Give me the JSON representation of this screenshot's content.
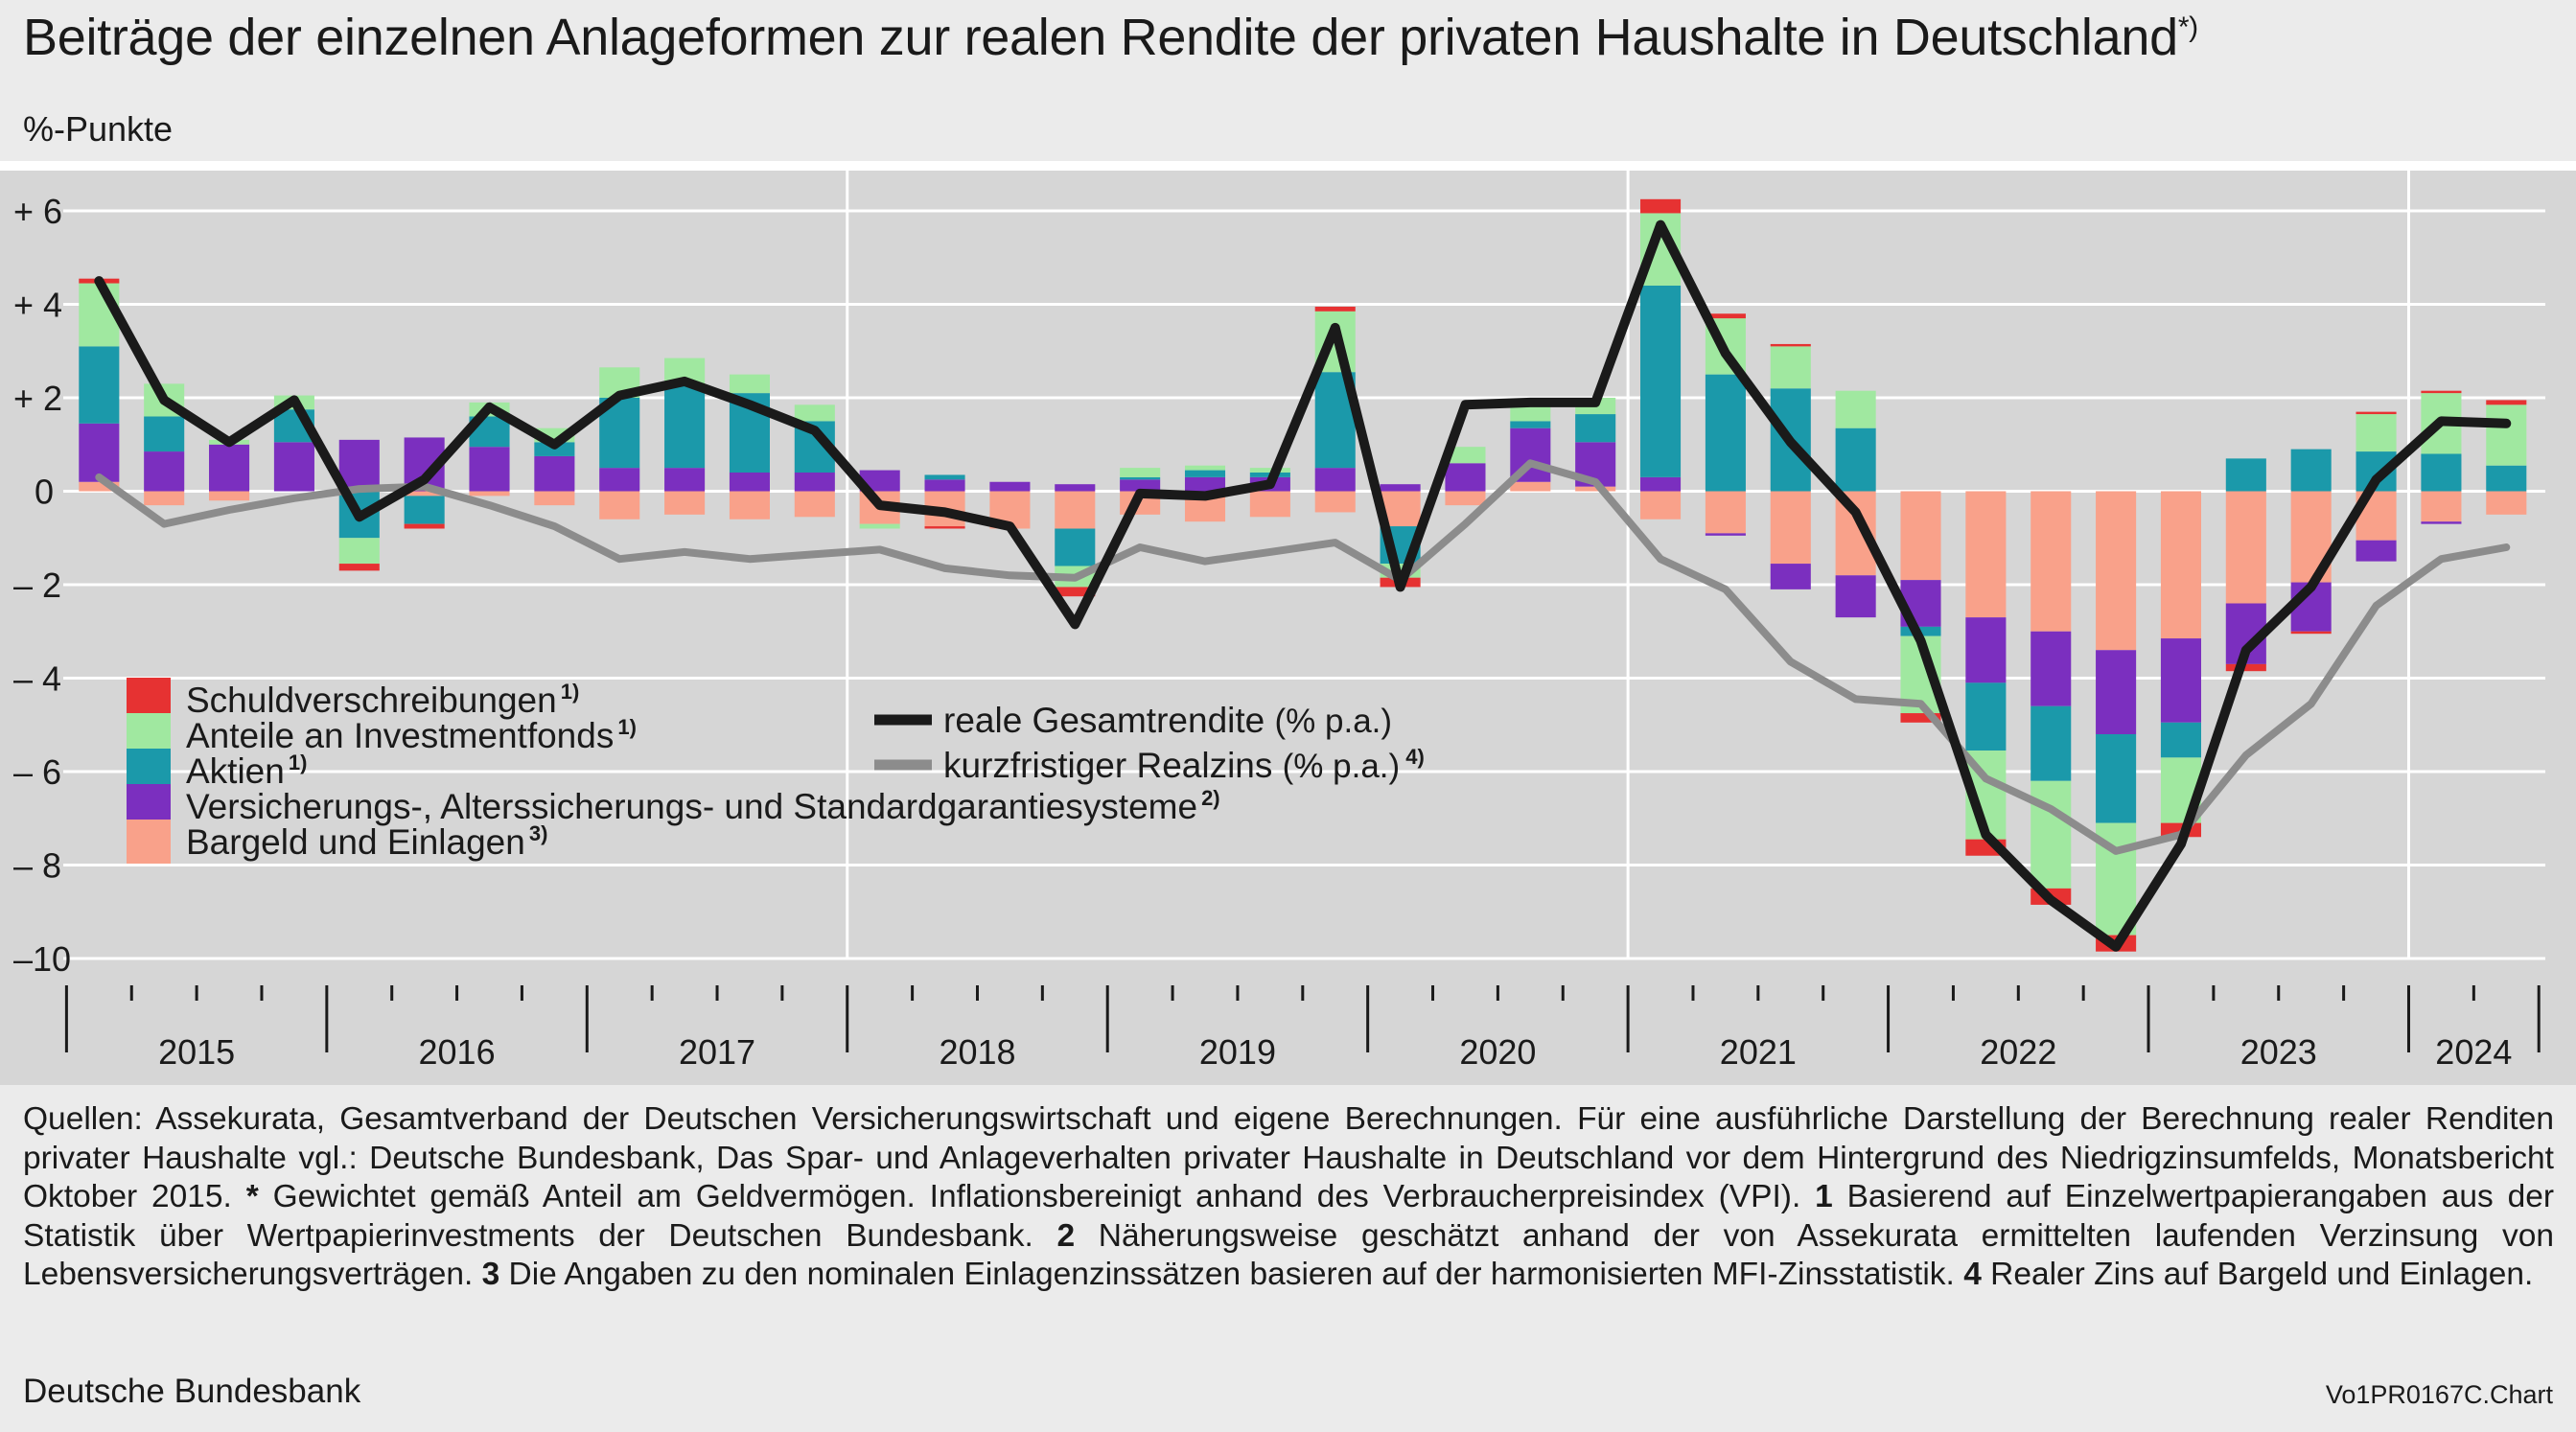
{
  "header": {
    "title": "Beiträge der einzelnen Anlageformen zur realen Rendite der privaten Haushalte in Deutschland",
    "title_note": "*)",
    "unit": "%-Punkte"
  },
  "footer": {
    "sources_text": "Quellen: Assekurata, Gesamtverband der Deutschen Versicherungswirtschaft und eigene Berechnungen. Für eine ausführliche Darstellung der Berechnung realer Renditen privater Haushalte vgl.: Deutsche Bundesbank, Das Spar- und Anlageverhalten privater Haushalte in Deutschland vor dem Hintergrund des Niedrigzinsumfelds, Monatsbericht Oktober 2015.",
    "note_star_key": "*",
    "note_star": "Gewichtet gemäß Anteil am Geldvermögen. Inflationsbereinigt anhand des Verbraucherpreisindex (VPI).",
    "note1_key": "1",
    "note1": "Basierend auf Einzelwertpapierangaben aus der Statistik über Wertpapierinvestments der Deutschen Bundesbank.",
    "note2_key": "2",
    "note2": "Näherungsweise geschätzt anhand der von Assekurata ermittelten laufenden Verzinsung von Lebensversicherungsverträgen.",
    "note3_key": "3",
    "note3": "Die Angaben zu den nominalen Einlagenzinssätzen basieren auf der harmonisierten MFI-Zinsstatistik.",
    "note4_key": "4",
    "note4": "Realer Zins auf Bargeld und Einlagen.",
    "publisher": "Deutsche Bundesbank",
    "chart_code": "Vo1PR0167C.Chart"
  },
  "chart_data": {
    "type": "bar",
    "stacked": true,
    "ylim": [
      -10,
      6
    ],
    "y_ticks": [
      6,
      4,
      2,
      0,
      -2,
      -4,
      -6,
      -8,
      -10
    ],
    "y_tick_labels": [
      "+  6",
      "+  4",
      "+  2",
      "0",
      "–  2",
      "–  4",
      "–  6",
      "–  8",
      "–10"
    ],
    "categories": [
      "2015 Q1",
      "2015 Q2",
      "2015 Q3",
      "2015 Q4",
      "2016 Q1",
      "2016 Q2",
      "2016 Q3",
      "2016 Q4",
      "2017 Q1",
      "2017 Q2",
      "2017 Q3",
      "2017 Q4",
      "2018 Q1",
      "2018 Q2",
      "2018 Q3",
      "2018 Q4",
      "2019 Q1",
      "2019 Q2",
      "2019 Q3",
      "2019 Q4",
      "2020 Q1",
      "2020 Q2",
      "2020 Q3",
      "2020 Q4",
      "2021 Q1",
      "2021 Q2",
      "2021 Q3",
      "2021 Q4",
      "2022 Q1",
      "2022 Q2",
      "2022 Q3",
      "2022 Q4",
      "2023 Q1",
      "2023 Q2",
      "2023 Q3",
      "2023 Q4",
      "2024 Q1",
      "2024 Q2"
    ],
    "years": [
      {
        "label": "2015",
        "start": 0,
        "count": 4
      },
      {
        "label": "2016",
        "start": 4,
        "count": 4
      },
      {
        "label": "2017",
        "start": 8,
        "count": 4
      },
      {
        "label": "2018",
        "start": 12,
        "count": 4
      },
      {
        "label": "2019",
        "start": 16,
        "count": 4
      },
      {
        "label": "2020",
        "start": 20,
        "count": 4
      },
      {
        "label": "2021",
        "start": 24,
        "count": 4
      },
      {
        "label": "2022",
        "start": 28,
        "count": 4
      },
      {
        "label": "2023",
        "start": 32,
        "count": 4
      },
      {
        "label": "2024",
        "start": 36,
        "count": 2
      }
    ],
    "major_gridline_years": [
      "2018",
      "2021",
      "2024"
    ],
    "grid": true,
    "legend_position": "bottom-left",
    "series": [
      {
        "name": "Bargeld und Einlagen",
        "note": "3)",
        "color": "#f9a18a",
        "values": [
          0.2,
          -0.3,
          -0.2,
          0,
          0,
          -0.1,
          -0.1,
          -0.3,
          -0.6,
          -0.5,
          -0.6,
          -0.55,
          -0.7,
          -0.75,
          -0.8,
          -0.8,
          -0.5,
          -0.65,
          -0.55,
          -0.45,
          -0.75,
          -0.3,
          0.2,
          0.1,
          -0.6,
          -0.9,
          -1.55,
          -1.8,
          -1.9,
          -2.7,
          -3.0,
          -3.4,
          -3.15,
          -2.4,
          -1.95,
          -1.05,
          -0.65,
          -0.5
        ]
      },
      {
        "name": "Versicherungs-, Alterssicherungs- und Standardgarantiesysteme",
        "note": "2)",
        "color": "#7b2fbf",
        "values": [
          1.25,
          0.85,
          1.0,
          1.05,
          1.1,
          1.15,
          0.95,
          0.75,
          0.5,
          0.5,
          0.4,
          0.4,
          0.45,
          0.25,
          0.2,
          0.15,
          0.25,
          0.3,
          0.3,
          0.5,
          0.15,
          0.6,
          1.15,
          0.95,
          0.3,
          -0.05,
          -0.55,
          -0.9,
          -1.0,
          -1.4,
          -1.6,
          -1.8,
          -1.8,
          -1.3,
          -1.05,
          -0.45,
          -0.05,
          0.0
        ]
      },
      {
        "name": "Aktien",
        "note": "1)",
        "color": "#1b99aa",
        "values": [
          1.65,
          0.75,
          0.0,
          0.7,
          -1.0,
          -0.6,
          0.65,
          0.3,
          1.5,
          1.75,
          1.7,
          1.1,
          0.0,
          0.1,
          0.0,
          -0.8,
          0.05,
          0.15,
          0.1,
          2.05,
          -0.8,
          0.0,
          0.15,
          0.6,
          4.1,
          2.5,
          2.2,
          1.35,
          -0.2,
          -1.45,
          -1.6,
          -1.9,
          -0.75,
          0.7,
          0.9,
          0.85,
          0.8,
          0.55
        ]
      },
      {
        "name": "Anteile an Investmentfonds",
        "note": "1)",
        "color": "#a0e8a0",
        "values": [
          1.35,
          0.7,
          0.1,
          0.3,
          -0.55,
          0.0,
          0.3,
          0.3,
          0.65,
          0.6,
          0.4,
          0.35,
          -0.1,
          0.0,
          0.0,
          -0.45,
          0.2,
          0.1,
          0.1,
          1.3,
          -0.3,
          0.35,
          0.4,
          0.35,
          1.55,
          1.2,
          0.9,
          0.8,
          -1.65,
          -1.9,
          -2.3,
          -2.4,
          -1.4,
          0.0,
          0.0,
          0.8,
          1.3,
          1.3
        ]
      },
      {
        "name": "Schuldverschreibungen",
        "note": "1)",
        "color": "#e63232",
        "values": [
          0.1,
          0.0,
          0.0,
          0.0,
          -0.15,
          -0.1,
          0.0,
          0.0,
          0.0,
          0.0,
          0.0,
          0.0,
          0.0,
          -0.05,
          0.0,
          -0.2,
          0.0,
          0.0,
          0.0,
          0.1,
          -0.2,
          0.0,
          0.0,
          0.0,
          0.3,
          0.1,
          0.05,
          0.0,
          -0.2,
          -0.35,
          -0.35,
          -0.35,
          -0.3,
          -0.15,
          -0.05,
          0.05,
          0.05,
          0.1
        ]
      }
    ],
    "lines": [
      {
        "name": "reale Gesamtrendite",
        "unit_note": "(% p.a.)",
        "color": "#1a1a1a",
        "values": [
          4.5,
          1.95,
          1.05,
          1.95,
          -0.55,
          0.25,
          1.8,
          1.0,
          2.05,
          2.35,
          1.85,
          1.3,
          -0.3,
          -0.45,
          -0.75,
          -2.85,
          -0.05,
          -0.1,
          0.15,
          3.5,
          -2.05,
          1.85,
          1.9,
          1.9,
          5.7,
          2.95,
          1.05,
          -0.45,
          -3.2,
          -7.35,
          -8.75,
          -9.75,
          -7.55,
          -3.4,
          -2.05,
          0.25,
          1.5,
          1.45
        ]
      },
      {
        "name": "kurzfristiger Realzins",
        "unit_note": "(% p.a.)",
        "note": "4)",
        "color": "#8c8c8c",
        "values": [
          0.3,
          -0.7,
          -0.4,
          -0.15,
          0.05,
          0.1,
          -0.3,
          -0.75,
          -1.45,
          -1.3,
          -1.45,
          -1.35,
          -1.25,
          -1.65,
          -1.8,
          -1.85,
          -1.2,
          -1.5,
          -1.3,
          -1.1,
          -1.9,
          -0.7,
          0.6,
          0.2,
          -1.45,
          -2.1,
          -3.65,
          -4.45,
          -4.55,
          -6.15,
          -6.8,
          -7.7,
          -7.35,
          -5.65,
          -4.55,
          -2.45,
          -1.45,
          -1.2
        ]
      }
    ]
  }
}
